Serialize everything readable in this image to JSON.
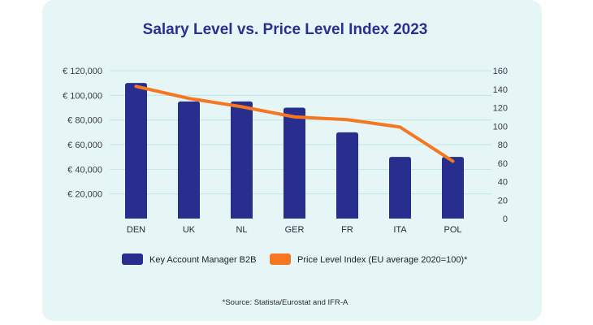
{
  "chart_data": {
    "type": "bar",
    "title": "Salary Level vs. Price Level Index 2023",
    "categories": [
      "DEN",
      "UK",
      "NL",
      "GER",
      "FR",
      "ITA",
      "POL"
    ],
    "series": [
      {
        "name": "Key Account Manager B2B",
        "type": "bar",
        "axis": "left",
        "color": "#272e8e",
        "values": [
          110000,
          95000,
          95000,
          90000,
          70000,
          50000,
          50000
        ]
      },
      {
        "name": "Price Level Index (EU average 2020=100)*",
        "type": "line",
        "axis": "right",
        "color": "#f57722",
        "values": [
          143,
          130,
          121,
          110,
          107,
          99,
          62
        ]
      }
    ],
    "left_axis": {
      "ylim": [
        0,
        120000
      ],
      "ticks": [
        20000,
        40000,
        60000,
        80000,
        100000,
        120000
      ],
      "tick_labels": [
        "€ 20,000",
        "€ 40,000",
        "€ 60,000",
        "€ 80,000",
        "€ 100,000",
        "€ 120,000"
      ]
    },
    "right_axis": {
      "ylim": [
        0,
        160
      ],
      "ticks": [
        0,
        20,
        40,
        60,
        80,
        100,
        120,
        140,
        160
      ],
      "tick_labels": [
        "0",
        "20",
        "40",
        "60",
        "80",
        "100",
        "120",
        "140",
        "160"
      ]
    },
    "grid": true,
    "legend_position": "bottom",
    "source_note": "*Source: Statista/Eurostat and IFR-A"
  }
}
